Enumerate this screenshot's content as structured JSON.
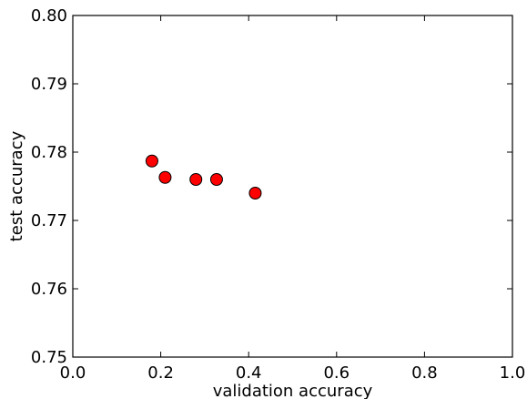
{
  "chart_data": {
    "type": "scatter",
    "title": "",
    "xlabel": "validation accuracy",
    "ylabel": "test accuracy",
    "xlim": [
      0.0,
      1.0
    ],
    "ylim": [
      0.75,
      0.8
    ],
    "xticks": [
      0.0,
      0.2,
      0.4,
      0.6,
      0.8,
      1.0
    ],
    "xtick_labels": [
      "0.0",
      "0.2",
      "0.4",
      "0.6",
      "0.8",
      "1.0"
    ],
    "yticks": [
      0.75,
      0.76,
      0.77,
      0.78,
      0.79,
      0.8
    ],
    "ytick_labels": [
      "0.75",
      "0.76",
      "0.77",
      "0.78",
      "0.79",
      "0.80"
    ],
    "grid": false,
    "legend": "none",
    "marker_color": "#ff0000",
    "marker_edge_color": "#000000",
    "series": [
      {
        "points": [
          {
            "x": 0.18,
            "y": 0.7787
          },
          {
            "x": 0.21,
            "y": 0.7763
          },
          {
            "x": 0.28,
            "y": 0.776
          },
          {
            "x": 0.327,
            "y": 0.776
          },
          {
            "x": 0.415,
            "y": 0.774
          }
        ]
      }
    ]
  }
}
